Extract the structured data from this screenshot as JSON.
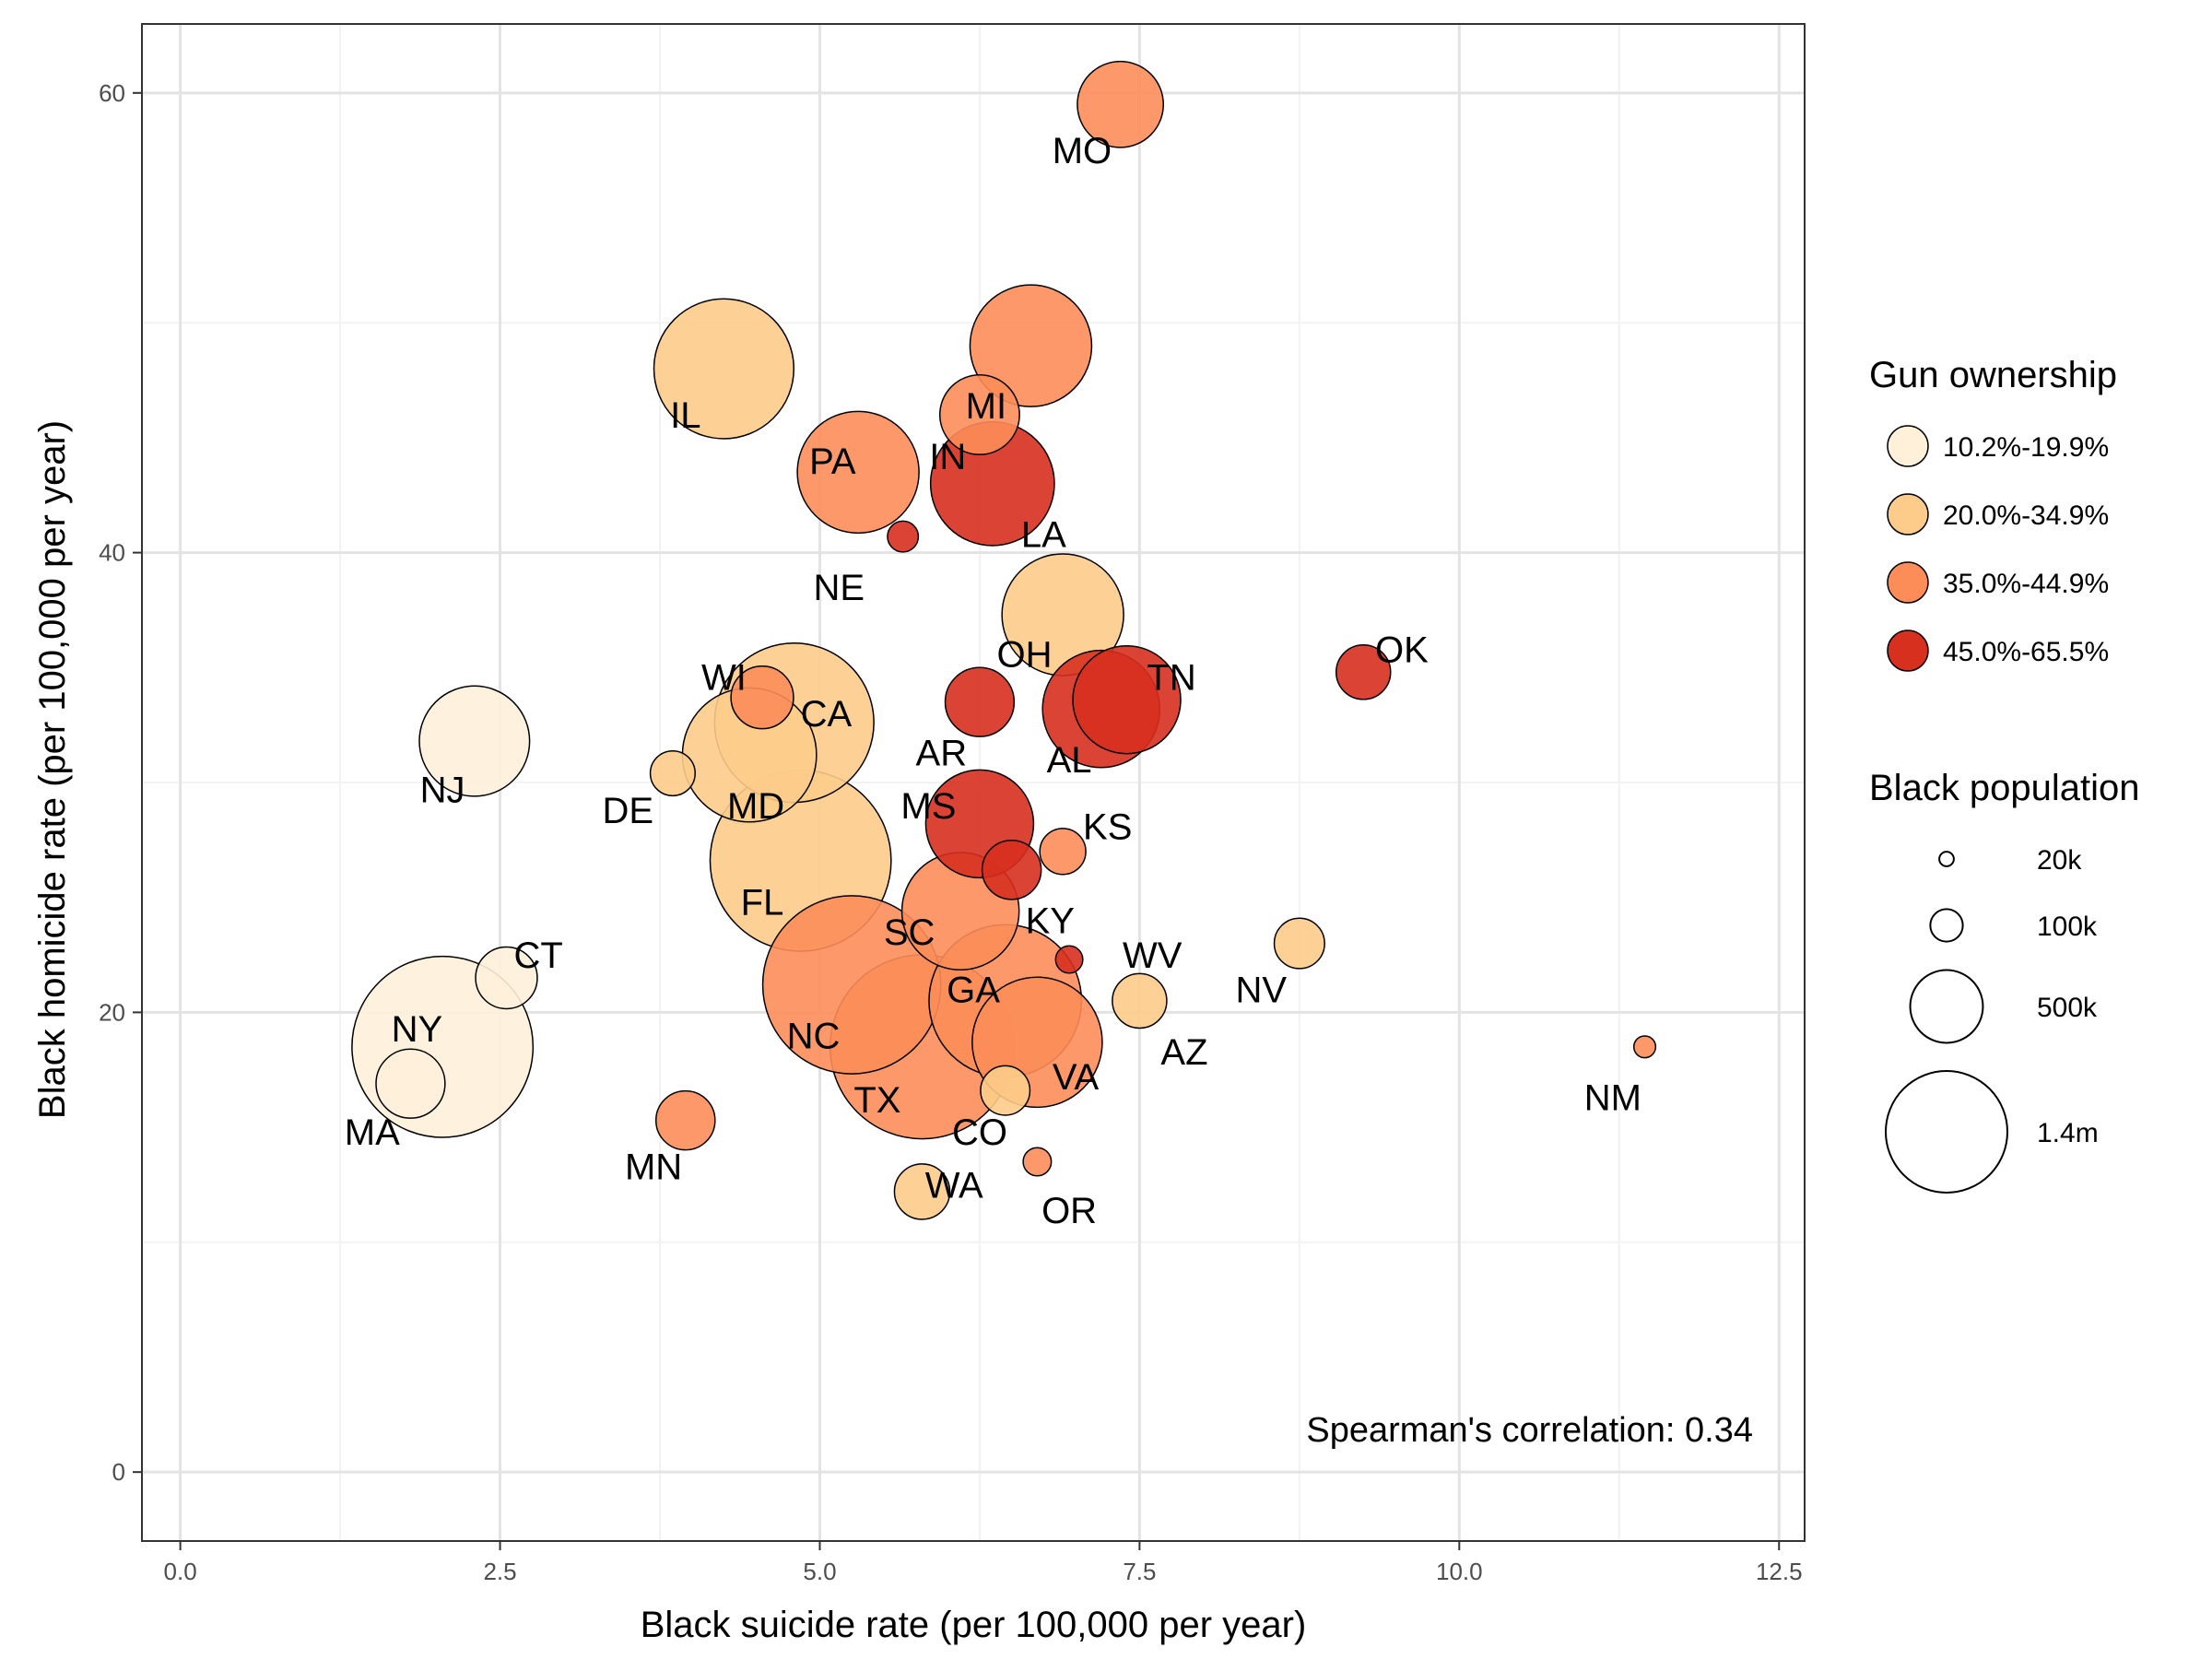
{
  "chart_data": {
    "type": "scatter",
    "xlabel": "Black suicide rate (per 100,000 per year)",
    "ylabel": "Black homicide rate (per 100,000 per year)",
    "xlim": [
      -0.3,
      12.7
    ],
    "ylim": [
      -3,
      63
    ],
    "x_ticks": [
      0,
      2.5,
      5,
      7.5,
      10,
      12.5
    ],
    "x_tick_labels": [
      "0.0",
      "2.5",
      "5.0",
      "7.5",
      "10.0",
      "12.5"
    ],
    "y_ticks": [
      0,
      20,
      40,
      60
    ],
    "y_tick_labels": [
      "0",
      "20",
      "40",
      "60"
    ],
    "grid": true,
    "annotation": "Spearman's correlation: 0.34",
    "color_legend": {
      "title": "Gun ownership",
      "placement": "right",
      "items": [
        {
          "label": "10.2%-19.9%",
          "color": "#FEF0D9"
        },
        {
          "label": "20.0%-34.9%",
          "color": "#FDCC8A"
        },
        {
          "label": "35.0%-44.9%",
          "color": "#FC8D59"
        },
        {
          "label": "45.0%-65.5%",
          "color": "#D7301F"
        }
      ]
    },
    "size_legend": {
      "title": "Black population",
      "items": [
        {
          "label": "20k",
          "value": 20000
        },
        {
          "label": "100k",
          "value": 100000
        },
        {
          "label": "500k",
          "value": 500000
        },
        {
          "label": "1.4m",
          "value": 1400000
        }
      ]
    },
    "points": [
      {
        "label": "MO",
        "x": 7.35,
        "y": 59.5,
        "pop": 700000,
        "group": 2,
        "label_x": 7.05,
        "label_y": 57.5
      },
      {
        "label": "MI",
        "x": 6.65,
        "y": 49.0,
        "pop": 1400000,
        "group": 2,
        "label_x": 6.3,
        "label_y": 46.4
      },
      {
        "label": "IL",
        "x": 4.25,
        "y": 48.0,
        "pop": 1850000,
        "group": 1,
        "label_x": 3.95,
        "label_y": 46.0
      },
      {
        "label": "IN",
        "x": 6.25,
        "y": 46.0,
        "pop": 600000,
        "group": 2,
        "label_x": 6.0,
        "label_y": 44.2
      },
      {
        "label": "PA",
        "x": 5.3,
        "y": 43.5,
        "pop": 1400000,
        "group": 2,
        "label_x": 5.1,
        "label_y": 44.0
      },
      {
        "label": "LA",
        "x": 6.35,
        "y": 43.0,
        "pop": 1450000,
        "group": 3,
        "label_x": 6.75,
        "label_y": 40.8
      },
      {
        "label": "NE",
        "x": 5.65,
        "y": 40.7,
        "pop": 90000,
        "group": 3,
        "label_x": 5.15,
        "label_y": 38.5
      },
      {
        "label": "OH",
        "x": 6.9,
        "y": 37.3,
        "pop": 1400000,
        "group": 1,
        "label_x": 6.6,
        "label_y": 35.6
      },
      {
        "label": "OK",
        "x": 9.25,
        "y": 34.8,
        "pop": 280000,
        "group": 3,
        "label_x": 9.55,
        "label_y": 35.8
      },
      {
        "label": "TN",
        "x": 7.4,
        "y": 33.6,
        "pop": 1100000,
        "group": 3,
        "label_x": 7.75,
        "label_y": 34.6
      },
      {
        "label": "AL",
        "x": 7.2,
        "y": 33.2,
        "pop": 1300000,
        "group": 3,
        "label_x": 6.95,
        "label_y": 31.0
      },
      {
        "label": "WI",
        "x": 4.55,
        "y": 33.7,
        "pop": 370000,
        "group": 2,
        "label_x": 4.25,
        "label_y": 34.6
      },
      {
        "label": "CA",
        "x": 4.8,
        "y": 32.6,
        "pop": 2400000,
        "group": 1,
        "label_x": 5.05,
        "label_y": 33.0
      },
      {
        "label": "AR",
        "x": 6.25,
        "y": 33.5,
        "pop": 450000,
        "group": 3,
        "label_x": 5.95,
        "label_y": 31.3
      },
      {
        "label": "NJ",
        "x": 2.3,
        "y": 31.8,
        "pop": 1150000,
        "group": 0,
        "label_x": 2.05,
        "label_y": 29.7
      },
      {
        "label": "MD",
        "x": 4.45,
        "y": 31.2,
        "pop": 1700000,
        "group": 1,
        "label_x": 4.5,
        "label_y": 29.0
      },
      {
        "label": "DE",
        "x": 3.85,
        "y": 30.4,
        "pop": 190000,
        "group": 1,
        "label_x": 3.5,
        "label_y": 28.8
      },
      {
        "label": "MS",
        "x": 6.25,
        "y": 28.2,
        "pop": 1100000,
        "group": 3,
        "label_x": 5.85,
        "label_y": 29.0
      },
      {
        "label": "KS",
        "x": 6.9,
        "y": 27.0,
        "pop": 200000,
        "group": 2,
        "label_x": 7.25,
        "label_y": 28.1
      },
      {
        "label": "FL",
        "x": 4.85,
        "y": 26.6,
        "pop": 3100000,
        "group": 1,
        "label_x": 4.55,
        "label_y": 24.8
      },
      {
        "label": "KY",
        "x": 6.5,
        "y": 26.2,
        "pop": 330000,
        "group": 3,
        "label_x": 6.8,
        "label_y": 24.0
      },
      {
        "label": "SC",
        "x": 6.1,
        "y": 24.4,
        "pop": 1300000,
        "group": 2,
        "label_x": 5.7,
        "label_y": 23.5
      },
      {
        "label": "NV",
        "x": 8.75,
        "y": 23.0,
        "pop": 240000,
        "group": 1,
        "label_x": 8.45,
        "label_y": 21.0
      },
      {
        "label": "WV",
        "x": 6.95,
        "y": 22.3,
        "pop": 70000,
        "group": 3,
        "label_x": 7.6,
        "label_y": 22.5
      },
      {
        "label": "CT",
        "x": 2.55,
        "y": 21.5,
        "pop": 360000,
        "group": 0,
        "label_x": 2.8,
        "label_y": 22.5
      },
      {
        "label": "GA",
        "x": 5.25,
        "y": 21.2,
        "pop": 3000000,
        "group": 2,
        "label_x": 6.2,
        "label_y": 21.0
      },
      {
        "label": "AZ",
        "x": 7.5,
        "y": 20.5,
        "pop": 280000,
        "group": 1,
        "label_x": 7.85,
        "label_y": 18.3
      },
      {
        "label": "NC",
        "x": 6.45,
        "y": 20.5,
        "pop": 2200000,
        "group": 2,
        "label_x": 4.95,
        "label_y": 19.0
      },
      {
        "label": "NY",
        "x": 2.05,
        "y": 18.5,
        "pop": 3100000,
        "group": 0,
        "label_x": 1.85,
        "label_y": 19.3
      },
      {
        "label": "TX",
        "x": 5.8,
        "y": 18.5,
        "pop": 3200000,
        "group": 2,
        "label_x": 5.45,
        "label_y": 16.2
      },
      {
        "label": "VA",
        "x": 6.7,
        "y": 18.7,
        "pop": 1600000,
        "group": 2,
        "label_x": 7.0,
        "label_y": 17.2
      },
      {
        "label": "NM",
        "x": 11.45,
        "y": 18.5,
        "pop": 45000,
        "group": 2,
        "label_x": 11.2,
        "label_y": 16.3
      },
      {
        "label": "MA",
        "x": 1.8,
        "y": 16.9,
        "pop": 450000,
        "group": 0,
        "label_x": 1.5,
        "label_y": 14.8
      },
      {
        "label": "CO",
        "x": 6.45,
        "y": 16.6,
        "pop": 230000,
        "group": 1,
        "label_x": 6.25,
        "label_y": 14.8
      },
      {
        "label": "MN",
        "x": 3.95,
        "y": 15.3,
        "pop": 330000,
        "group": 2,
        "label_x": 3.7,
        "label_y": 13.3
      },
      {
        "label": "OR",
        "x": 6.7,
        "y": 13.5,
        "pop": 75000,
        "group": 2,
        "label_x": 6.95,
        "label_y": 11.4
      },
      {
        "label": "WA",
        "x": 5.8,
        "y": 12.2,
        "pop": 290000,
        "group": 1,
        "label_x": 6.05,
        "label_y": 12.5
      }
    ]
  }
}
